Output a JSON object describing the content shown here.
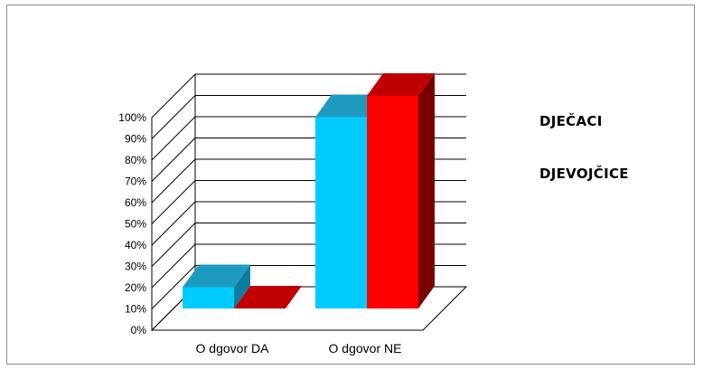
{
  "chart_data": {
    "type": "bar",
    "categories": [
      "O dgovor DA",
      "O dgovor NE"
    ],
    "series": [
      {
        "name": "DJEČACI",
        "values": [
          10,
          90
        ],
        "color": "#00CCFF",
        "top_color": "#1E9AC0",
        "side_color": "#0A7EA0"
      },
      {
        "name": "DJEVOJČICE",
        "values": [
          0,
          100
        ],
        "color": "#FF0000",
        "top_color": "#C00000",
        "side_color": "#7A0000"
      }
    ],
    "ylim": [
      0,
      100
    ],
    "ytick_labels": [
      "0%",
      "10%",
      "20%",
      "30%",
      "40%",
      "50%",
      "60%",
      "70%",
      "80%",
      "90%",
      "100%"
    ],
    "grid": true,
    "legend_position": "right",
    "three_d": true
  }
}
